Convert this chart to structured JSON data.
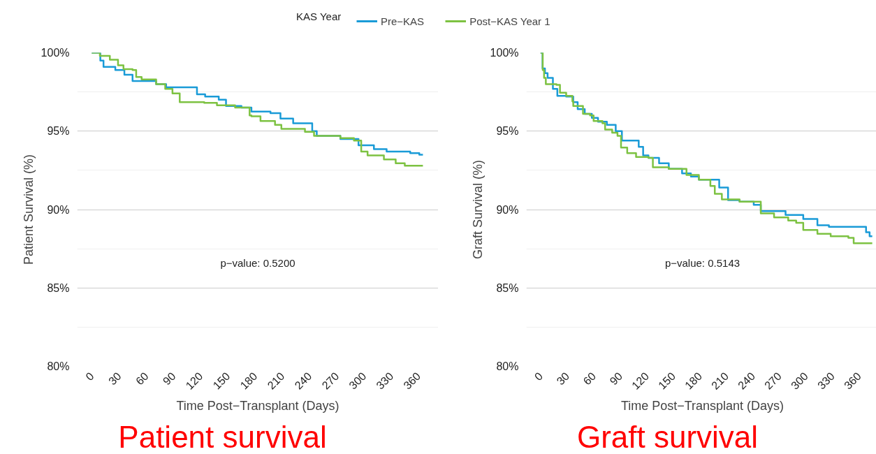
{
  "chart_data": [
    {
      "type": "step",
      "xlabel": "Time Post−Transplant (Days)",
      "ylabel": "Patient Survival (%)",
      "legend_title": "KAS Year",
      "legend": "top",
      "xlim": [
        -16,
        382
      ],
      "ylim": [
        80,
        100
      ],
      "xticks": [
        0,
        30,
        60,
        90,
        120,
        150,
        180,
        210,
        240,
        270,
        300,
        330,
        360
      ],
      "yticks": [
        {
          "value": 80,
          "label": "80%"
        },
        {
          "value": 85,
          "label": "85%"
        },
        {
          "value": 90,
          "label": "90%"
        },
        {
          "value": 95,
          "label": "95%"
        },
        {
          "value": 100,
          "label": "100%"
        }
      ],
      "grid": "y",
      "annotations": [
        "p−value: 0.5200",
        "Patient survival"
      ],
      "series": [
        {
          "name": "Pre−KAS",
          "color": "#1a9bd7",
          "x": [
            0,
            9.5,
            13,
            26,
            36,
            45,
            71,
            82,
            111,
            116,
            125,
            140,
            148,
            165,
            176,
            197,
            208,
            222,
            243,
            248,
            274,
            294,
            311,
            325,
            351,
            361,
            365
          ],
          "values": [
            100,
            99.5,
            99.1,
            98.9,
            98.6,
            98.2,
            98.0,
            97.8,
            97.8,
            97.35,
            97.2,
            97.0,
            96.6,
            96.5,
            96.25,
            96.15,
            95.8,
            95.5,
            95.0,
            94.7,
            94.5,
            94.1,
            93.85,
            93.7,
            93.6,
            93.5,
            93.5
          ]
        },
        {
          "name": "Post−KAS Year 1",
          "color": "#7dc242",
          "x": [
            0,
            9,
            20,
            29,
            35,
            45,
            49,
            55,
            71,
            81,
            89,
            97,
            124,
            138,
            158,
            174,
            176,
            186,
            202,
            209,
            235,
            245,
            274,
            289,
            297,
            304,
            322,
            335,
            345,
            365
          ],
          "values": [
            100,
            99.8,
            99.55,
            99.2,
            98.95,
            98.9,
            98.45,
            98.3,
            98.0,
            97.7,
            97.4,
            96.85,
            96.8,
            96.65,
            96.5,
            96.0,
            95.95,
            95.65,
            95.4,
            95.15,
            94.95,
            94.7,
            94.55,
            94.4,
            93.7,
            93.45,
            93.2,
            92.95,
            92.8,
            92.8
          ]
        }
      ]
    },
    {
      "type": "step",
      "xlabel": "Time Post−Transplant (Days)",
      "ylabel": "Graft Survival (%)",
      "xlim": [
        -16,
        382
      ],
      "ylim": [
        80,
        100
      ],
      "xticks": [
        0,
        30,
        60,
        90,
        120,
        150,
        180,
        210,
        240,
        270,
        300,
        330,
        360
      ],
      "yticks": [
        {
          "value": 80,
          "label": "80%"
        },
        {
          "value": 85,
          "label": "85%"
        },
        {
          "value": 90,
          "label": "90%"
        },
        {
          "value": 95,
          "label": "95%"
        },
        {
          "value": 100,
          "label": "100%"
        }
      ],
      "grid": "y",
      "annotations": [
        "p−value: 0.5143",
        "Graft survival"
      ],
      "series": [
        {
          "color": "#1a9bd7",
          "x": [
            0,
            2.3,
            5,
            8,
            14,
            19,
            29,
            37,
            42,
            50,
            58,
            65,
            75,
            85,
            92,
            105,
            111,
            116,
            122,
            134,
            145,
            160,
            170,
            179,
            192,
            202,
            212,
            225,
            241,
            249,
            269,
            277,
            297,
            313,
            326,
            359,
            368,
            372,
            375
          ],
          "values": [
            100,
            99.0,
            98.7,
            98.4,
            97.7,
            97.25,
            97.2,
            96.85,
            96.4,
            96.1,
            95.85,
            95.6,
            95.4,
            95.0,
            94.4,
            94.4,
            94.0,
            93.45,
            93.3,
            92.95,
            92.6,
            92.3,
            92.1,
            91.9,
            91.9,
            91.4,
            90.6,
            90.5,
            90.3,
            89.9,
            89.9,
            89.65,
            89.4,
            89.0,
            88.9,
            88.9,
            88.55,
            88.3,
            88.3
          ]
        },
        {
          "color": "#7dc242",
          "x": [
            0,
            2.5,
            4,
            6,
            18,
            22,
            29,
            36,
            37,
            43,
            48,
            56,
            60,
            70,
            73,
            81,
            87,
            91,
            98,
            108,
            122,
            127,
            145,
            165,
            179,
            192,
            197,
            205,
            225,
            249,
            264,
            280,
            289,
            297,
            313,
            328,
            348,
            354,
            375
          ],
          "values": [
            100,
            98.9,
            98.4,
            98.0,
            97.95,
            97.45,
            97.25,
            96.9,
            96.6,
            96.6,
            96.1,
            96.0,
            95.65,
            95.5,
            95.1,
            94.9,
            94.7,
            93.95,
            93.6,
            93.35,
            93.3,
            92.7,
            92.6,
            92.2,
            91.9,
            91.5,
            91.0,
            90.65,
            90.5,
            89.75,
            89.5,
            89.3,
            89.15,
            88.7,
            88.45,
            88.3,
            88.2,
            87.85,
            87.85
          ]
        }
      ]
    }
  ]
}
